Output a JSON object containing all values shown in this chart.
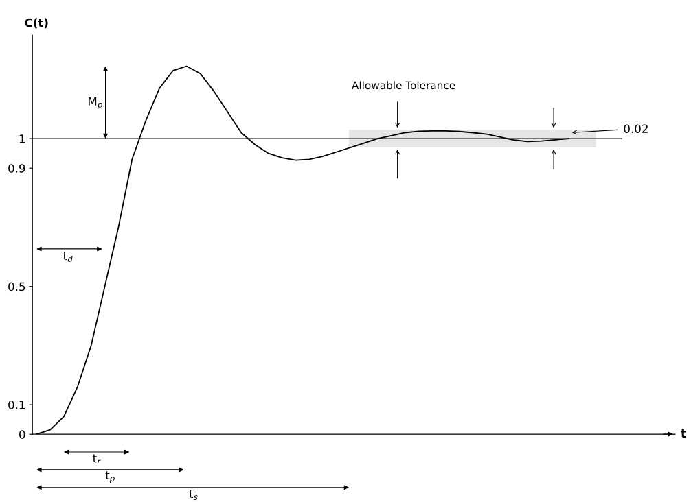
{
  "chart_data": {
    "type": "line",
    "ylabel": "C(t)",
    "categories": [
      null,
      null,
      null,
      null,
      null,
      null,
      null,
      null,
      null,
      null,
      null,
      null,
      null,
      null,
      null,
      null,
      null,
      null,
      null,
      null,
      null,
      null,
      null,
      null,
      null,
      null,
      null,
      null,
      null,
      null,
      null,
      null,
      null,
      null,
      null,
      null,
      null,
      null,
      null,
      null
    ],
    "series": [
      {
        "color": "#000000",
        "values": [
          0,
          0.015,
          0.06,
          0.16,
          0.3,
          0.5,
          0.7,
          0.93,
          1.06,
          1.17,
          1.23,
          1.245,
          1.22,
          1.16,
          1.09,
          1.02,
          0.98,
          0.95,
          0.935,
          0.927,
          0.93,
          0.94,
          0.955,
          0.97,
          0.985,
          1.0,
          1.01,
          1.02,
          1.025,
          1.026,
          1.026,
          1.024,
          1.02,
          1.015,
          1.005,
          0.995,
          0.99,
          0.992,
          0.996,
          1.0
        ]
      }
    ],
    "ylim": [
      0,
      1.35
    ],
    "yticks": [
      0,
      0.1,
      0.5,
      0.9,
      1
    ],
    "ref_lines": [
      {
        "axis": "y",
        "value": 1,
        "color": "#000000",
        "line_style": "solid"
      }
    ],
    "bands": [
      {
        "axis": "y",
        "from": 0.97,
        "to": 1.03,
        "label": "Allowable Tolerance",
        "color": "#e6e6e6"
      }
    ],
    "annotations": [
      "M$_{p}$",
      "t$_{d}$",
      "t$_{r}$",
      "t$_{p}$",
      "t$_{s}$",
      "0.02",
      "t"
    ],
    "grid": false,
    "marker": "none",
    "line_style": "solid"
  }
}
